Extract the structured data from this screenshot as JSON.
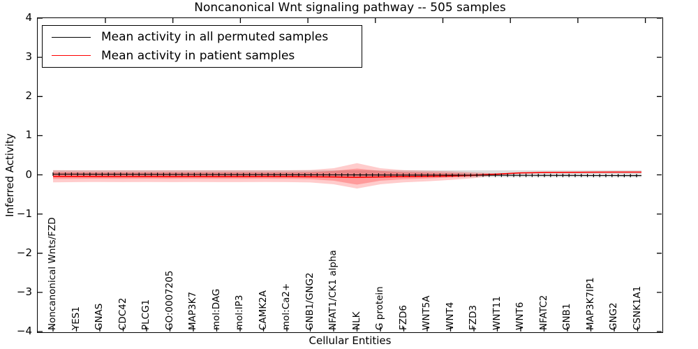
{
  "title": "Noncanonical Wnt signaling pathway -- 505 samples",
  "axes": {
    "ylabel": "Inferred Activity",
    "xlabel": "Cellular Entities",
    "ytick_labels": [
      "4",
      "3",
      "2",
      "1",
      "0",
      "−1",
      "−2",
      "−3",
      "−4"
    ],
    "ytick_values": [
      4,
      3,
      2,
      1,
      0,
      -1,
      -2,
      -3,
      -4
    ]
  },
  "legend": {
    "position": "upper left",
    "items": [
      {
        "label": "Mean activity in all permuted samples",
        "color": "#000000"
      },
      {
        "label": "Mean activity in patient samples",
        "color": "#ff0000"
      }
    ]
  },
  "chart_data": {
    "type": "line",
    "title": "Noncanonical Wnt signaling pathway -- 505 samples",
    "xlabel": "Cellular Entities",
    "ylabel": "Inferred Activity",
    "ylim": [
      -4,
      4
    ],
    "grid": false,
    "legend_position": "upper left",
    "categories": [
      "Noncanonical Wnts/FZD",
      "YES1",
      "GNAS",
      "CDC42",
      "PLCG1",
      "GO:0007205",
      "MAP3K7",
      "mol:DAG",
      "mol:IP3",
      "CAMK2A",
      "mol:Ca2+",
      "GNB1/GNG2",
      "NFAT1/CK1 alpha",
      "NLK",
      "G protein",
      "FZD6",
      "WNT5A",
      "WNT4",
      "FZD3",
      "WNT11",
      "WNT6",
      "NFATC2",
      "GNB1",
      "MAP3K7IP1",
      "GNG2",
      "CSNK1A1"
    ],
    "series": [
      {
        "name": "Mean activity in all permuted samples",
        "color": "#000000",
        "marker": "+",
        "values": [
          0.018,
          0.017,
          0.015,
          0.014,
          0.012,
          0.011,
          0.009,
          0.008,
          0.006,
          0.005,
          0.003,
          0.002,
          0.0,
          -0.002,
          -0.003,
          -0.005,
          -0.006,
          -0.008,
          -0.009,
          -0.011,
          -0.012,
          -0.014,
          -0.015,
          -0.017,
          -0.018,
          -0.02
        ]
      },
      {
        "name": "Mean activity in patient samples",
        "color": "#ff0000",
        "marker": "none",
        "values": [
          -0.04,
          -0.041,
          -0.043,
          -0.045,
          -0.043,
          -0.046,
          -0.043,
          -0.046,
          -0.046,
          -0.043,
          -0.046,
          -0.05,
          -0.055,
          -0.065,
          -0.055,
          -0.046,
          -0.04,
          -0.03,
          -0.01,
          0.02,
          0.05,
          0.06,
          0.065,
          0.068,
          0.07,
          0.07
        ]
      }
    ],
    "bands": [
      {
        "name": "permuted-sample-range",
        "color": "#888888",
        "opacity": 0.28,
        "upper_const": 0.115,
        "lower_const": -0.055
      },
      {
        "name": "patient-sample-outer-range",
        "color": "#ff0000",
        "opacity": 0.2,
        "upper": [
          0.12,
          0.118,
          0.115,
          0.118,
          0.115,
          0.118,
          0.115,
          0.118,
          0.118,
          0.115,
          0.118,
          0.125,
          0.17,
          0.3,
          0.17,
          0.12,
          0.105,
          0.09,
          0.065,
          0.035,
          0.058,
          0.068,
          0.073,
          0.076,
          0.078,
          0.078
        ],
        "lower": [
          -0.19,
          -0.185,
          -0.182,
          -0.185,
          -0.182,
          -0.185,
          -0.182,
          -0.185,
          -0.185,
          -0.182,
          -0.185,
          -0.195,
          -0.24,
          -0.35,
          -0.24,
          -0.19,
          -0.165,
          -0.13,
          -0.085,
          0.0,
          0.04,
          0.052,
          0.057,
          0.06,
          0.062,
          0.062
        ]
      },
      {
        "name": "patient-sample-inner-range",
        "color": "#ff0000",
        "opacity": 0.24,
        "upper": [
          0.068,
          0.066,
          0.064,
          0.066,
          0.064,
          0.066,
          0.064,
          0.066,
          0.066,
          0.064,
          0.066,
          0.072,
          0.1,
          0.16,
          0.1,
          0.07,
          0.06,
          0.048,
          0.028,
          0.028,
          0.054,
          0.064,
          0.069,
          0.072,
          0.074,
          0.074
        ],
        "lower": [
          -0.105,
          -0.102,
          -0.1,
          -0.102,
          -0.1,
          -0.102,
          -0.1,
          -0.102,
          -0.102,
          -0.1,
          -0.102,
          -0.11,
          -0.15,
          -0.25,
          -0.15,
          -0.11,
          -0.095,
          -0.07,
          -0.04,
          0.01,
          0.046,
          0.056,
          0.061,
          0.064,
          0.066,
          0.066
        ]
      }
    ]
  }
}
